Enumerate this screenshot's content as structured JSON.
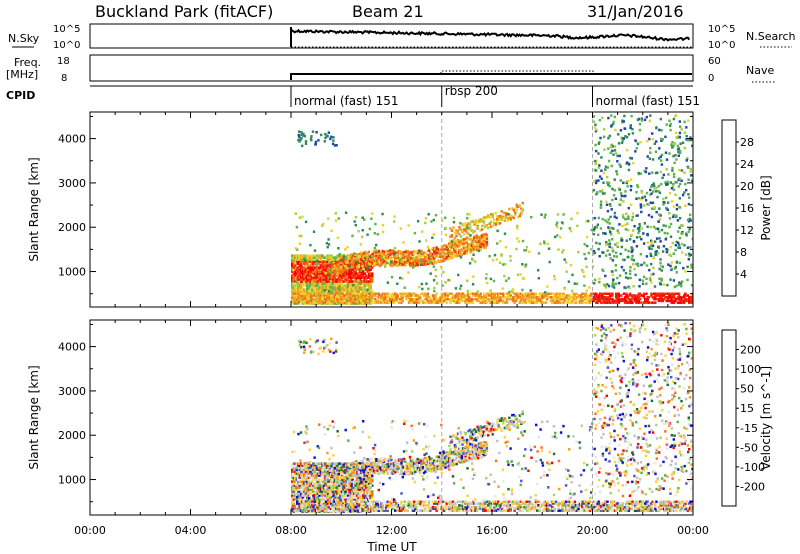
{
  "header": {
    "station": "Buckland Park (fitACF)",
    "beam": "Beam 21",
    "date": "31/Jan/2016"
  },
  "strips": {
    "nsky": {
      "label": "N.Sky",
      "ticks": [
        "10^5",
        "10^0"
      ],
      "right_label": "N.Search",
      "right_ticks": [
        "10^5",
        "10^0"
      ]
    },
    "freq": {
      "label_line1": "Freq.",
      "label_line2": "[MHz]",
      "ticks": [
        "18",
        "8"
      ],
      "right_label": "Nave",
      "right_ticks": [
        "60",
        "0"
      ]
    },
    "cpid": {
      "label": "CPID"
    }
  },
  "colors": {
    "power": [
      "#1a1aff",
      "#2048a8",
      "#2e8a5c",
      "#5db44a",
      "#a8d040",
      "#f0d02c",
      "#f0a020",
      "#f07018",
      "#e83010",
      "#ff0000"
    ],
    "velocity": [
      "#1010d0",
      "#5050d0",
      "#1a6a3a",
      "#5cb04a",
      "#a6d85a",
      "#c0c0c0",
      "#e6e6e6",
      "#ffd040",
      "#f0a020",
      "#ff7020",
      "#ff0000"
    ],
    "ground": "#888888",
    "grid_dash": "#aaaaaa"
  },
  "chart_data": [
    {
      "type": "heatmap",
      "title": "Power",
      "ylabel": "Slant Range [km]",
      "xlabel": "",
      "y_ticks": [
        1000,
        2000,
        3000,
        4000
      ],
      "ylim": [
        200,
        4600
      ],
      "x_ticks": [
        "00:00",
        "04:00",
        "08:00",
        "12:00",
        "16:00",
        "20:00",
        "00:00"
      ],
      "xlim_hours": [
        0,
        24
      ],
      "colorbar": {
        "label": "Power [dB]",
        "ticks": [
          4,
          8,
          12,
          16,
          20,
          24,
          28
        ],
        "range": [
          0,
          32
        ]
      },
      "features": [
        {
          "region": "E-region layer",
          "hours": [
            8,
            11
          ],
          "range_km": [
            700,
            1300
          ],
          "value_db": 24
        },
        {
          "region": "rising band",
          "hours": [
            10,
            15.5
          ],
          "range_km": [
            1100,
            1600
          ],
          "value_db": 22
        },
        {
          "region": "near-range echoes",
          "hours": [
            8,
            24
          ],
          "range_km": [
            250,
            450
          ],
          "value_db": 18
        },
        {
          "region": "post-sunset scatter",
          "hours": [
            20,
            24
          ],
          "range_km": [
            600,
            4500
          ],
          "value_db": 10
        }
      ]
    },
    {
      "type": "heatmap",
      "title": "Velocity",
      "ylabel": "Slant Range [km]",
      "xlabel": "Time UT",
      "y_ticks": [
        1000,
        2000,
        3000,
        4000
      ],
      "ylim": [
        200,
        4600
      ],
      "x_ticks": [
        "00:00",
        "04:00",
        "08:00",
        "12:00",
        "16:00",
        "20:00",
        "00:00"
      ],
      "xlim_hours": [
        0,
        24
      ],
      "colorbar": {
        "label": "Velocity [m s^-1]",
        "ticks": [
          200,
          100,
          50,
          15,
          -15,
          -50,
          -100,
          -200
        ],
        "range": [
          -250,
          250
        ]
      }
    }
  ],
  "cpid_segments": [
    {
      "start_hour": 8,
      "end_hour": 14,
      "label": "normal (fast) 151"
    },
    {
      "start_hour": 14,
      "end_hour": 20,
      "label": "rbsp 200"
    },
    {
      "start_hour": 20,
      "end_hour": 24,
      "label": "normal (fast) 151"
    }
  ],
  "x_axis_title": "Time UT"
}
